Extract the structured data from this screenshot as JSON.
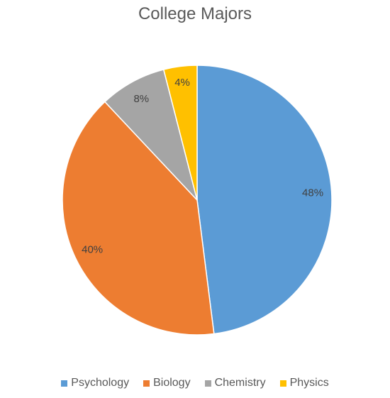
{
  "chart_data": {
    "type": "pie",
    "title": "College Majors",
    "legend_position": "bottom",
    "slices": [
      {
        "name": "Psychology",
        "value": 48,
        "label": "48%",
        "color": "#5B9BD5"
      },
      {
        "name": "Biology",
        "value": 40,
        "label": "40%",
        "color": "#ED7D31"
      },
      {
        "name": "Chemistry",
        "value": 8,
        "label": "8%",
        "color": "#A5A5A5"
      },
      {
        "name": "Physics",
        "value": 4,
        "label": "4%",
        "color": "#FFC000"
      }
    ]
  }
}
